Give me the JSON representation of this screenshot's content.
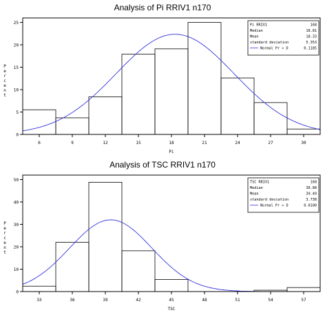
{
  "chart_data": [
    {
      "type": "bar",
      "title": "Analysis of Pi RRIV1 n170",
      "xlabel": "Pi",
      "ylabel": "Percent",
      "bin_edges": [
        4.5,
        7.5,
        10.5,
        13.5,
        16.5,
        19.5,
        22.5,
        25.5,
        28.5,
        31.5
      ],
      "values": [
        5.5,
        3.7,
        8.4,
        17.9,
        19.1,
        25.0,
        12.6,
        7.1,
        1.2
      ],
      "xticks": [
        6,
        9,
        12,
        15,
        18,
        21,
        24,
        27,
        30
      ],
      "yticks": [
        0,
        5,
        10,
        15,
        20,
        25
      ],
      "xlim": [
        4.5,
        31.5
      ],
      "ylim": [
        0,
        26
      ],
      "normal_curve": {
        "mean": 18.33,
        "sd": 5.353,
        "bin_width": 3
      },
      "stats_box": {
        "header_label": "Pi RRIV1",
        "header_value": "168",
        "rows": [
          {
            "label": "Median",
            "value": "18.81"
          },
          {
            "label": "Mean",
            "value": "18.33"
          },
          {
            "label": "standard deviation",
            "value": "5.353"
          }
        ],
        "normal_label": "Normal Pr > D",
        "normal_value": "0.1185"
      }
    },
    {
      "type": "bar",
      "title": "Analysis of TSC RRIV1 n170",
      "xlabel": "TSC",
      "ylabel": "Percent",
      "bin_edges": [
        31.5,
        34.5,
        37.5,
        40.5,
        43.5,
        46.5,
        49.5,
        52.5,
        55.5,
        58.5
      ],
      "values": [
        2.4,
        22.0,
        48.8,
        18.2,
        5.4,
        0,
        0,
        0.6,
        1.8
      ],
      "xticks": [
        33,
        36,
        39,
        42,
        45,
        48,
        51,
        54,
        57
      ],
      "yticks": [
        0,
        10,
        20,
        30,
        40,
        50
      ],
      "xlim": [
        31.5,
        58.5
      ],
      "ylim": [
        0,
        52
      ],
      "normal_curve": {
        "mean": 39.49,
        "sd": 3.738,
        "bin_width": 3
      },
      "stats_box": {
        "header_label": "TSC RRIV1",
        "header_value": "168",
        "rows": [
          {
            "label": "Median",
            "value": "38.88"
          },
          {
            "label": "Mean",
            "value": "39.49"
          },
          {
            "label": "standard deviation",
            "value": "3.738"
          }
        ],
        "normal_label": "Normal Pr > D",
        "normal_value": "0.0100"
      }
    }
  ],
  "colors": {
    "curve": "#3333dd",
    "bar_stroke": "#000000",
    "axis": "#000000"
  }
}
